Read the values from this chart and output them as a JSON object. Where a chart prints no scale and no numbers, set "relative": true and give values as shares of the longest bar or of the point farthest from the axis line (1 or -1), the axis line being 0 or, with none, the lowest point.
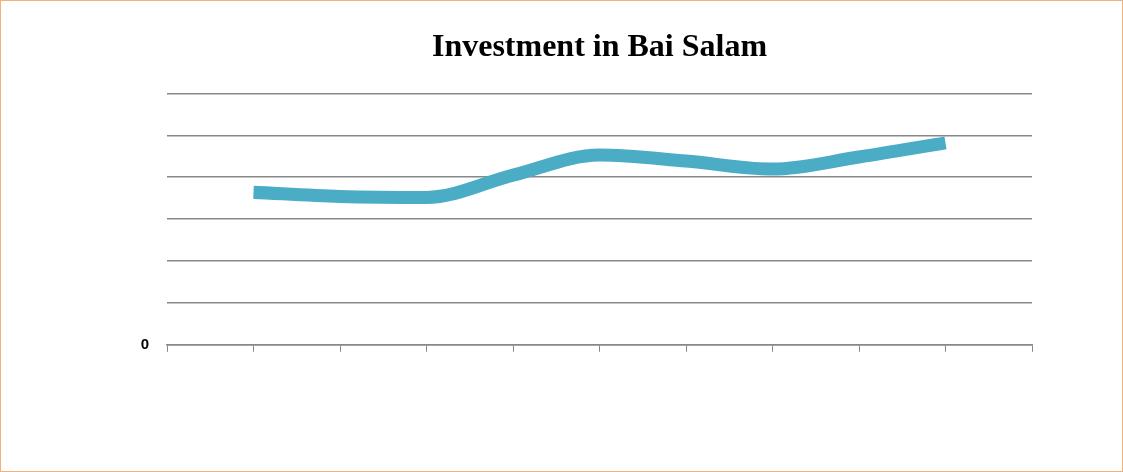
{
  "chart_data": {
    "type": "line",
    "title": "Investment in Bai Salam",
    "relative": true,
    "grid": "y",
    "legend": false,
    "marker": "none",
    "line_style": "solid",
    "categories": [
      null,
      null,
      null,
      null,
      null,
      null,
      null,
      null,
      null,
      null,
      null
    ],
    "series": [
      {
        "color": "#4bacc6",
        "values": [
          null,
          0.755,
          0.735,
          0.73,
          0.84,
          0.94,
          0.91,
          0.87,
          0.93,
          1,
          null
        ]
      }
    ],
    "annotations": [
      "0"
    ]
  }
}
